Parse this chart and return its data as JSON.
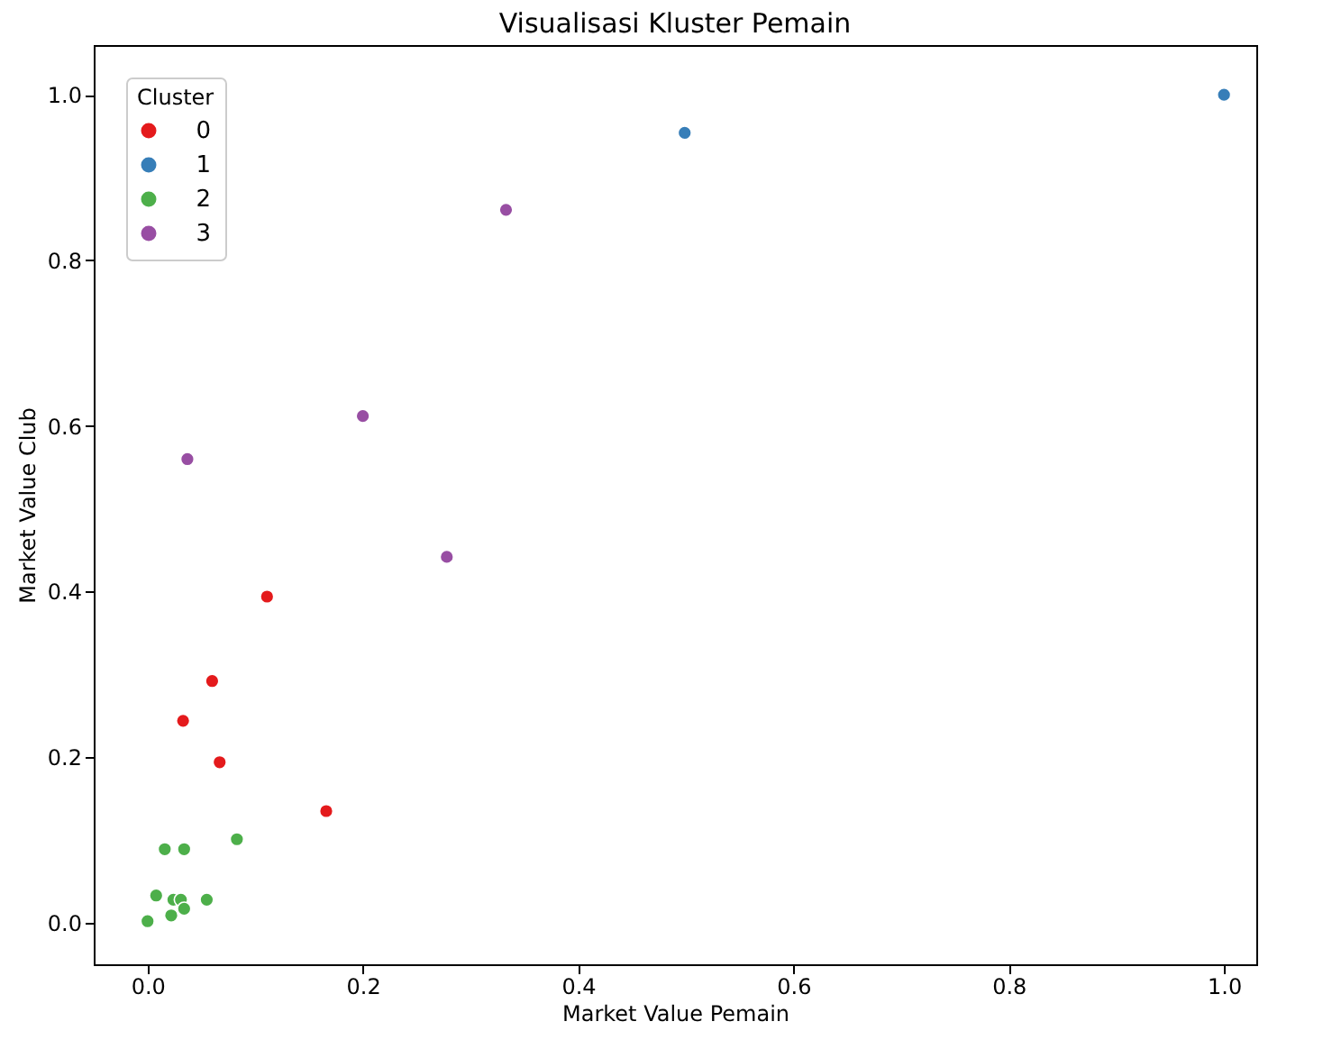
{
  "chart_data": {
    "type": "scatter",
    "title": "Visualisasi Kluster Pemain",
    "xlabel": "Market Value Pemain",
    "ylabel": "Market Value Club",
    "legend_title": "Cluster",
    "legend": "top left",
    "marker": "circle",
    "grid": false,
    "xlim": [
      -0.05,
      1.03
    ],
    "ylim": [
      -0.05,
      1.06
    ],
    "xticks": [
      {
        "value": 0,
        "label": "0.0"
      },
      0.2,
      0.4,
      0.6,
      0.8,
      {
        "value": 1,
        "label": "1.0"
      }
    ],
    "yticks": [
      {
        "value": 0,
        "label": "0.0"
      },
      0.2,
      0.4,
      0.6,
      0.8,
      {
        "value": 1,
        "label": "1.0"
      }
    ],
    "series": [
      {
        "name": "0",
        "color": "#e41a1c",
        "x": [
          0.033,
          0.06,
          0.067,
          0.166,
          0.111
        ],
        "values": [
          0.244,
          0.292,
          0.194,
          0.135,
          0.394
        ]
      },
      {
        "name": "1",
        "color": "#377eb8",
        "x": [
          0.499,
          1.0
        ],
        "values": [
          0.954,
          1.0
        ]
      },
      {
        "name": "2",
        "color": "#4daf4a",
        "x": [
          0.0,
          0.008,
          0.016,
          0.034,
          0.083,
          0.022,
          0.024,
          0.031,
          0.034,
          0.055
        ],
        "values": [
          0.002,
          0.033,
          0.089,
          0.089,
          0.101,
          0.009,
          0.028,
          0.028,
          0.017,
          0.028
        ]
      },
      {
        "name": "3",
        "color": "#984ea3",
        "x": [
          0.037,
          0.2,
          0.278,
          0.333
        ],
        "values": [
          0.56,
          0.612,
          0.442,
          0.861
        ]
      }
    ]
  }
}
